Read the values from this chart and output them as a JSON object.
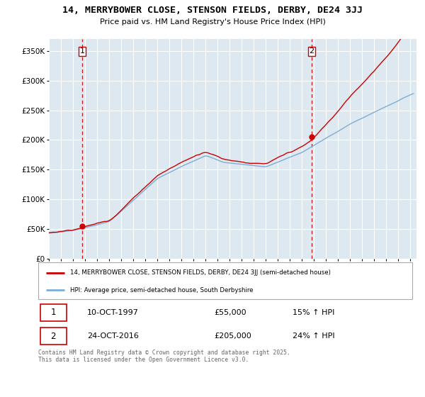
{
  "title": "14, MERRYBOWER CLOSE, STENSON FIELDS, DERBY, DE24 3JJ",
  "subtitle": "Price paid vs. HM Land Registry's House Price Index (HPI)",
  "ylim": [
    0,
    370000
  ],
  "yticks": [
    0,
    50000,
    100000,
    150000,
    200000,
    250000,
    300000,
    350000
  ],
  "ytick_labels": [
    "£0",
    "£50K",
    "£100K",
    "£150K",
    "£200K",
    "£250K",
    "£300K",
    "£350K"
  ],
  "xlim_start": 1995.0,
  "xlim_end": 2025.5,
  "sale1_year": 1997.78,
  "sale1_price": 55000,
  "sale2_year": 2016.81,
  "sale2_price": 205000,
  "red_color": "#cc0000",
  "blue_color": "#7dadd4",
  "bg_color": "#dde8f0",
  "legend_label_red": "14, MERRYBOWER CLOSE, STENSON FIELDS, DERBY, DE24 3JJ (semi-detached house)",
  "legend_label_blue": "HPI: Average price, semi-detached house, South Derbyshire",
  "footer": "Contains HM Land Registry data © Crown copyright and database right 2025.\nThis data is licensed under the Open Government Licence v3.0.",
  "note1": "10-OCT-1997",
  "note1_price": "£55,000",
  "note1_hpi": "15% ↑ HPI",
  "note2": "24-OCT-2016",
  "note2_price": "£205,000",
  "note2_hpi": "24% ↑ HPI"
}
